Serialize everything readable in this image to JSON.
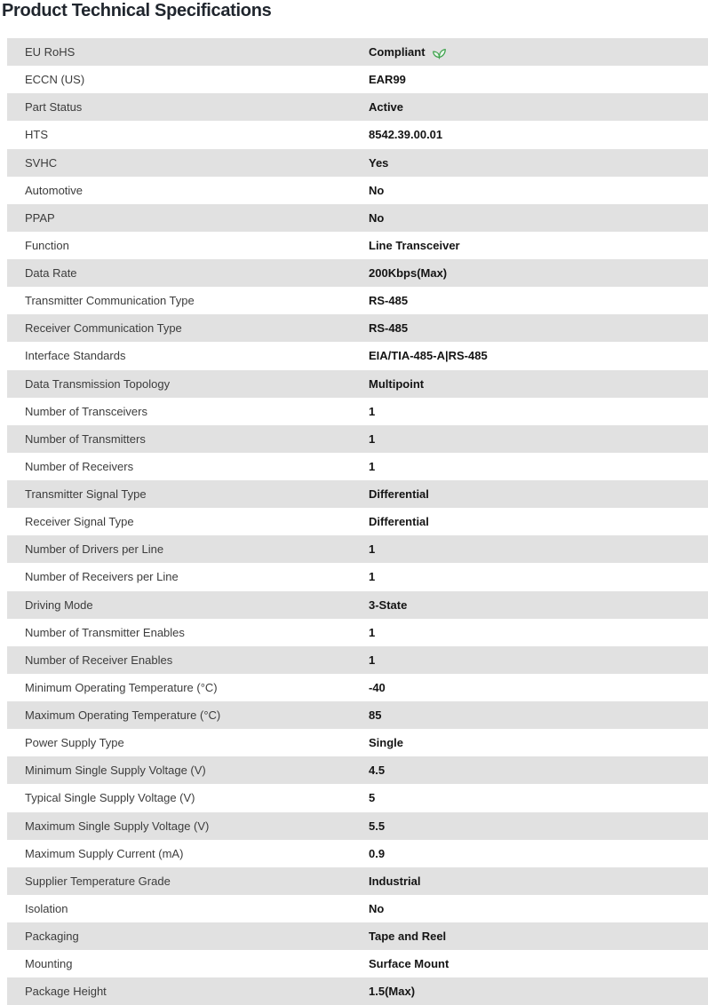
{
  "page_title": "Product Technical Specifications",
  "colors": {
    "row_alt_bg": "#e1e1e1",
    "row_bg": "#ffffff",
    "title_text": "#20262e",
    "label_text": "#3c3c3c",
    "value_text": "#141414",
    "leaf_green": "#3fa34d"
  },
  "table": {
    "rows": [
      {
        "label": "EU RoHS",
        "value": "Compliant",
        "icon": "leaf-icon"
      },
      {
        "label": "ECCN (US)",
        "value": "EAR99"
      },
      {
        "label": "Part Status",
        "value": "Active"
      },
      {
        "label": "HTS",
        "value": "8542.39.00.01"
      },
      {
        "label": "SVHC",
        "value": "Yes"
      },
      {
        "label": "Automotive",
        "value": "No"
      },
      {
        "label": "PPAP",
        "value": "No"
      },
      {
        "label": "Function",
        "value": "Line Transceiver"
      },
      {
        "label": "Data Rate",
        "value": "200Kbps(Max)"
      },
      {
        "label": "Transmitter Communication Type",
        "value": "RS-485"
      },
      {
        "label": "Receiver Communication Type",
        "value": "RS-485"
      },
      {
        "label": "Interface Standards",
        "value": "EIA/TIA-485-A|RS-485"
      },
      {
        "label": "Data Transmission Topology",
        "value": "Multipoint"
      },
      {
        "label": "Number of Transceivers",
        "value": "1"
      },
      {
        "label": "Number of Transmitters",
        "value": "1"
      },
      {
        "label": "Number of Receivers",
        "value": "1"
      },
      {
        "label": "Transmitter Signal Type",
        "value": "Differential"
      },
      {
        "label": "Receiver Signal Type",
        "value": "Differential"
      },
      {
        "label": "Number of Drivers per Line",
        "value": "1"
      },
      {
        "label": "Number of Receivers per Line",
        "value": "1"
      },
      {
        "label": "Driving Mode",
        "value": "3-State"
      },
      {
        "label": "Number of Transmitter Enables",
        "value": "1"
      },
      {
        "label": "Number of Receiver Enables",
        "value": "1"
      },
      {
        "label": "Minimum Operating Temperature (°C)",
        "value": "-40"
      },
      {
        "label": "Maximum Operating Temperature (°C)",
        "value": "85"
      },
      {
        "label": "Power Supply Type",
        "value": "Single"
      },
      {
        "label": "Minimum Single Supply Voltage (V)",
        "value": "4.5"
      },
      {
        "label": "Typical Single Supply Voltage (V)",
        "value": "5"
      },
      {
        "label": "Maximum Single Supply Voltage (V)",
        "value": "5.5"
      },
      {
        "label": "Maximum Supply Current (mA)",
        "value": "0.9"
      },
      {
        "label": "Supplier Temperature Grade",
        "value": "Industrial"
      },
      {
        "label": "Isolation",
        "value": "No"
      },
      {
        "label": "Packaging",
        "value": "Tape and Reel"
      },
      {
        "label": "Mounting",
        "value": "Surface Mount"
      },
      {
        "label": "Package Height",
        "value": "1.5(Max)"
      }
    ]
  }
}
